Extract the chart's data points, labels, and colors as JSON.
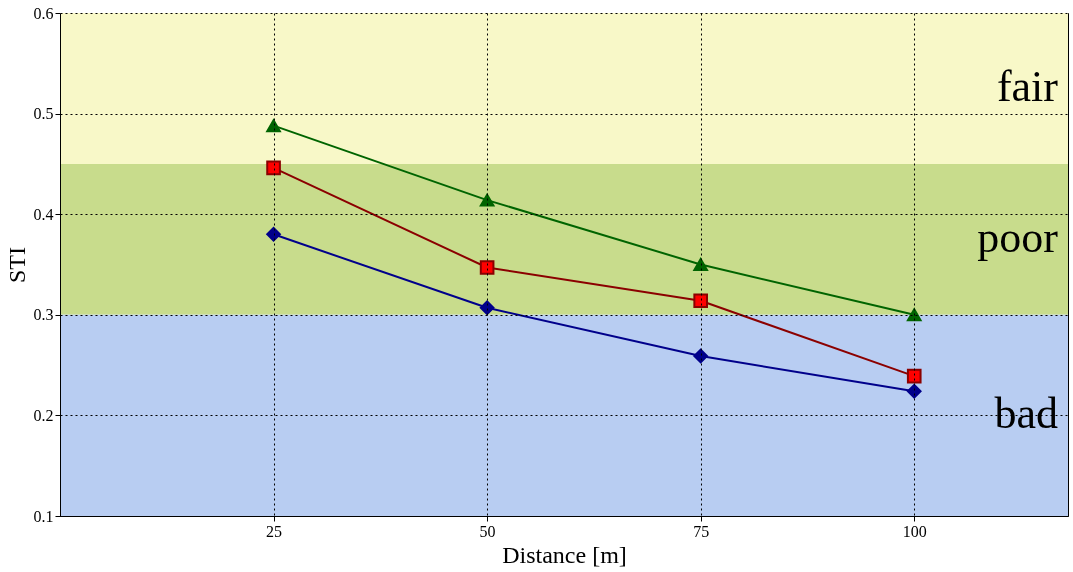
{
  "chart_data": {
    "type": "line",
    "xlabel": "Distance [m]",
    "ylabel": "STI",
    "x": [
      25,
      50,
      75,
      100
    ],
    "series": [
      {
        "color": "#006400",
        "marker": "triangle",
        "values": [
          0.488,
          0.414,
          0.35,
          0.3
        ]
      },
      {
        "color": "#8b0000",
        "marker": "square",
        "values": [
          0.446,
          0.347,
          0.314,
          0.239
        ]
      },
      {
        "color": "#00008b",
        "marker": "diamond",
        "values": [
          0.38,
          0.307,
          0.259,
          0.224
        ]
      }
    ],
    "xlim": [
      0,
      118
    ],
    "xticks": [
      25,
      50,
      75,
      100
    ],
    "ylim": [
      0.1,
      0.6
    ],
    "yticks": [
      0.1,
      0.2,
      0.3,
      0.4,
      0.5,
      0.6
    ],
    "bands": [
      {
        "axis": "y",
        "from": 0.45,
        "to": 0.6,
        "label": "fair",
        "color": "#f8f8c8"
      },
      {
        "axis": "y",
        "from": 0.3,
        "to": 0.45,
        "label": "poor",
        "color": "#c8dc8c"
      },
      {
        "axis": "y",
        "from": 0.1,
        "to": 0.3,
        "label": "bad",
        "color": "#b8cdf2"
      }
    ],
    "grid": true,
    "legend": false
  }
}
